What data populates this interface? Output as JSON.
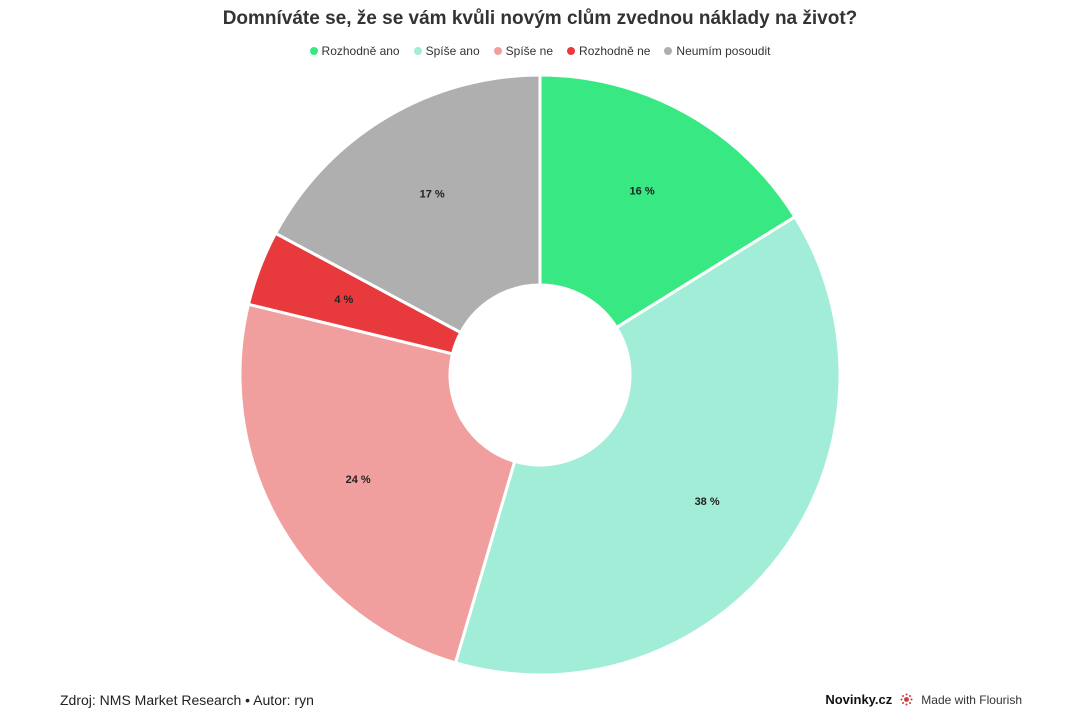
{
  "title": "Domníváte se, že se vám kvůli novým clům zvednou náklady na život?",
  "legend": [
    {
      "label": "Rozhodně ano",
      "color": "#38e883"
    },
    {
      "label": "Spíše ano",
      "color": "#a1edd7"
    },
    {
      "label": "Spíše ne",
      "color": "#f19e9e"
    },
    {
      "label": "Rozhodně ne",
      "color": "#e8393c"
    },
    {
      "label": "Neumím posoudit",
      "color": "#afafaf"
    }
  ],
  "chart_data": {
    "type": "pie",
    "donut": true,
    "title": "Domníváte se, že se vám kvůli novým clům zvednou náklady na život?",
    "categories": [
      "Rozhodně ano",
      "Spíše ano",
      "Spíše ne",
      "Rozhodně ne",
      "Neumím posoudit"
    ],
    "values": [
      16,
      38,
      24,
      4,
      17
    ],
    "value_labels": [
      "16 %",
      "38 %",
      "24 %",
      "4 %",
      "17 %"
    ],
    "colors": [
      "#38e883",
      "#a1edd7",
      "#f19e9e",
      "#e8393c",
      "#afafaf"
    ],
    "legend_position": "top"
  },
  "footer": {
    "source": "Zdroj: NMS Market Research • Autor: ryn",
    "brand": "Novinky.cz",
    "flourish": "Made with Flourish"
  },
  "icons": {
    "flourish": "flourish-logo-icon"
  }
}
